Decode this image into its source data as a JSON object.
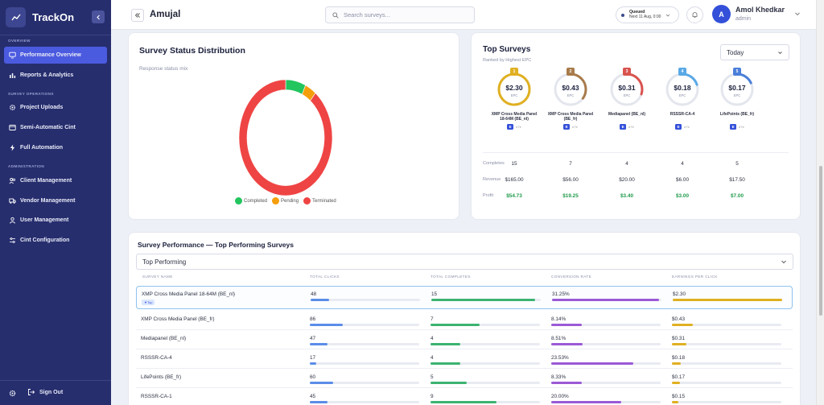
{
  "brand": {
    "name": "TrackOn",
    "accent": "#4b5be0",
    "sidebar_bg": "#262e6e"
  },
  "sidebar": {
    "sections": [
      {
        "label": "OVERVIEW",
        "items": [
          {
            "label": "Performance Overview",
            "icon": "monitor-icon",
            "active": true
          },
          {
            "label": "Reports & Analytics",
            "icon": "bar-chart-icon"
          }
        ]
      },
      {
        "label": "SURVEY OPERATIONS",
        "items": [
          {
            "label": "Project Uploads",
            "icon": "gear-icon"
          },
          {
            "label": "Semi-Automatic Cint",
            "icon": "terminal-icon"
          },
          {
            "label": "Full Automation",
            "icon": "lightning-icon"
          }
        ]
      },
      {
        "label": "ADMINISTRATION",
        "items": [
          {
            "label": "Client Management",
            "icon": "users-icon"
          },
          {
            "label": "Vendor Management",
            "icon": "truck-icon"
          },
          {
            "label": "User Management",
            "icon": "user-icon"
          },
          {
            "label": "Cint Configuration",
            "icon": "sliders-icon"
          }
        ]
      }
    ],
    "footer": {
      "signout_label": "Sign Out"
    }
  },
  "header": {
    "title": "Amujal",
    "search_placeholder": "Search surveys...",
    "queue": {
      "label": "Queued",
      "detail": "Next 11 Aug, 0:00"
    },
    "user": {
      "name": "Amol Khedkar",
      "role": "admin",
      "initial": "A"
    }
  },
  "status_card": {
    "title": "Survey Status Distribution",
    "subtitle": "Response status mix",
    "chart_data": {
      "type": "pie",
      "title": "Survey Status Distribution",
      "subtitle": "Response status mix",
      "categories": [
        "Completed",
        "Pending",
        "Terminated"
      ],
      "values": [
        7,
        4,
        89
      ],
      "colors": [
        "#22c55e",
        "#f59e0b",
        "#ef4444"
      ],
      "donut": true,
      "legend": "bottom"
    }
  },
  "top_surveys": {
    "title": "Top Surveys",
    "subtitle": "Ranked by Highest EPC",
    "period": "Today",
    "epc_label": "EPC",
    "surveys": [
      {
        "rank": "1",
        "epc": "$2.30",
        "name": "XMP Cross Media Panel 18-64M (BE_nl)",
        "tag": "E",
        "tag_text": "e7e",
        "color": "#e0b022",
        "progress": 1.0,
        "completes": "15",
        "revenue": "$165.00",
        "profit": "$54.73"
      },
      {
        "rank": "2",
        "epc": "$0.43",
        "name": "XMP Cross Media Panel (BE_fr)",
        "tag": "E",
        "tag_text": "e7e",
        "color": "#a87b4a",
        "progress": 0.35,
        "completes": "7",
        "revenue": "$56.00",
        "profit": "$19.25"
      },
      {
        "rank": "3",
        "epc": "$0.31",
        "name": "Mediapanel (BE_nl)",
        "tag": "E",
        "tag_text": "e7e",
        "color": "#d9534f",
        "progress": 0.3,
        "completes": "4",
        "revenue": "$20.00",
        "profit": "$3.40"
      },
      {
        "rank": "4",
        "epc": "$0.18",
        "name": "RSSSR-CA-4",
        "tag": "E",
        "tag_text": "e7e",
        "color": "#5aa9e6",
        "progress": 0.2,
        "completes": "4",
        "revenue": "$6.00",
        "profit": "$3.00"
      },
      {
        "rank": "5",
        "epc": "$0.17",
        "name": "LifePoints (BE_fr)",
        "tag": "E",
        "tag_text": "e7e",
        "color": "#4a7fd9",
        "progress": 0.18,
        "completes": "5",
        "revenue": "$17.50",
        "profit": "$7.00"
      }
    ],
    "metric_labels": {
      "completes": "Completes",
      "revenue": "Revenue",
      "profit": "Profit"
    }
  },
  "performance": {
    "title": "Survey Performance — Top Performing Surveys",
    "filter": "Top Performing",
    "columns": [
      "SURVEY NAME",
      "TOTAL CLICKS",
      "TOTAL COMPLETES",
      "CONVERSION RATE",
      "EARNINGS PER CLICK"
    ],
    "top_tag": "Top",
    "rows": [
      {
        "name": "XMP Cross Media Panel 18-64M (BE_nl)",
        "clicks": "48",
        "completes": "15",
        "conversion": "31.25%",
        "epc": "$2.30",
        "clicks_frac": 0.17,
        "completes_frac": 0.95,
        "conversion_frac": 0.98,
        "epc_frac": 1.0,
        "top": true
      },
      {
        "name": "XMP Cross Media Panel (BE_fr)",
        "clicks": "86",
        "completes": "7",
        "conversion": "8.14%",
        "epc": "$0.43",
        "clicks_frac": 0.3,
        "completes_frac": 0.45,
        "conversion_frac": 0.28,
        "epc_frac": 0.19
      },
      {
        "name": "Mediapanel (BE_nl)",
        "clicks": "47",
        "completes": "4",
        "conversion": "8.51%",
        "epc": "$0.31",
        "clicks_frac": 0.16,
        "completes_frac": 0.27,
        "conversion_frac": 0.29,
        "epc_frac": 0.13
      },
      {
        "name": "RSSSR-CA-4",
        "clicks": "17",
        "completes": "4",
        "conversion": "23.53%",
        "epc": "$0.18",
        "clicks_frac": 0.06,
        "completes_frac": 0.27,
        "conversion_frac": 0.75,
        "epc_frac": 0.08
      },
      {
        "name": "LifePoints (BE_fr)",
        "clicks": "60",
        "completes": "5",
        "conversion": "8.33%",
        "epc": "$0.17",
        "clicks_frac": 0.21,
        "completes_frac": 0.33,
        "conversion_frac": 0.28,
        "epc_frac": 0.07
      },
      {
        "name": "RSSSR-CA-1",
        "clicks": "45",
        "completes": "9",
        "conversion": "20.00%",
        "epc": "$0.15",
        "clicks_frac": 0.16,
        "completes_frac": 0.6,
        "conversion_frac": 0.64,
        "epc_frac": 0.06
      }
    ]
  }
}
